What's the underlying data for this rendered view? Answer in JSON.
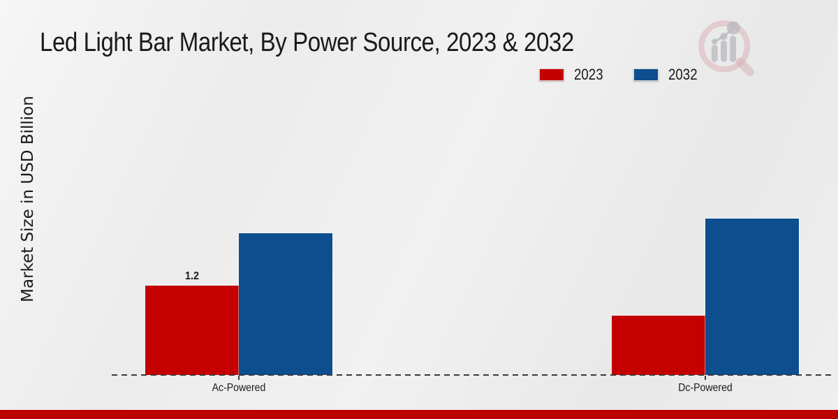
{
  "chart_data": {
    "type": "bar",
    "title": "Led Light Bar Market, By Power Source, 2023 & 2032",
    "ylabel": "Market Size in USD Billion",
    "categories": [
      "Ac-Powered",
      "Dc-Powered"
    ],
    "series": [
      {
        "name": "2023",
        "color": "#c40000",
        "values": [
          1.2,
          0.8
        ]
      },
      {
        "name": "2032",
        "color": "#0d4e8e",
        "values": [
          1.9,
          2.1
        ]
      }
    ],
    "data_labels": [
      {
        "category_index": 0,
        "series_index": 0,
        "text": "1.2"
      }
    ],
    "ylim": [
      0,
      2.5
    ],
    "grid": false,
    "legend_position": "top-right",
    "baseline_style": "dashed"
  },
  "branding": {
    "logo_icon": "magnifier-bar-chart-logo",
    "footer_bar_color": "#bb0000",
    "logo_ring_color": "#d9aeb4",
    "logo_bars_color": "#b9b9bf"
  },
  "colors": {
    "background": "#ececec",
    "axis_line": "#3a3a3a",
    "text": "#1a1a1a"
  }
}
